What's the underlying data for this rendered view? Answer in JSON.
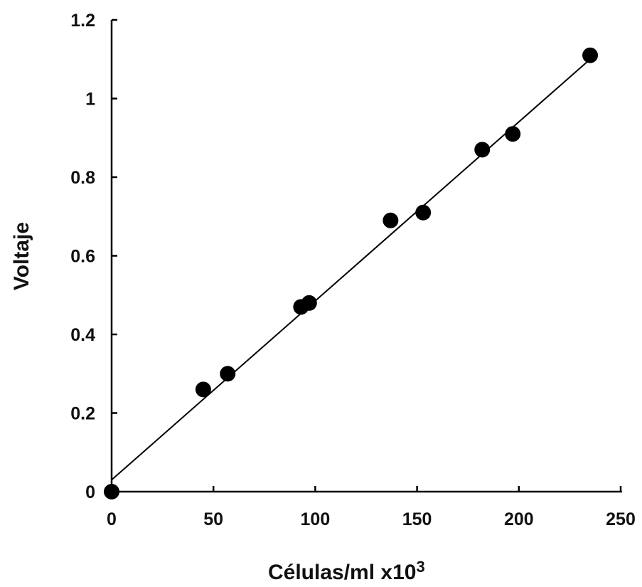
{
  "chart_data": {
    "type": "scatter",
    "title": "",
    "xlabel_main": "Células/ml x10",
    "xlabel_sup": "3",
    "ylabel": "Voltaje",
    "xlim": [
      0,
      250
    ],
    "ylim": [
      0,
      1.2
    ],
    "x_ticks": [
      "0",
      "50",
      "100",
      "150",
      "200",
      "250"
    ],
    "y_ticks": [
      "0",
      "0.2",
      "0.4",
      "0.6",
      "0.8",
      "1",
      "1.2"
    ],
    "grid": false,
    "series": [
      {
        "points": [
          {
            "x": 0,
            "y": 0
          },
          {
            "x": 45,
            "y": 0.26
          },
          {
            "x": 57,
            "y": 0.3
          },
          {
            "x": 93,
            "y": 0.47
          },
          {
            "x": 97,
            "y": 0.48
          },
          {
            "x": 137,
            "y": 0.69
          },
          {
            "x": 153,
            "y": 0.71
          },
          {
            "x": 182,
            "y": 0.87
          },
          {
            "x": 197,
            "y": 0.91
          },
          {
            "x": 235,
            "y": 1.11
          }
        ]
      }
    ],
    "trendline": {
      "type": "linear",
      "x": [
        0,
        235
      ],
      "y": [
        0.03,
        1.1
      ]
    },
    "colors": {
      "marker": "#000000",
      "line": "#000000",
      "axis": "#000000"
    }
  }
}
